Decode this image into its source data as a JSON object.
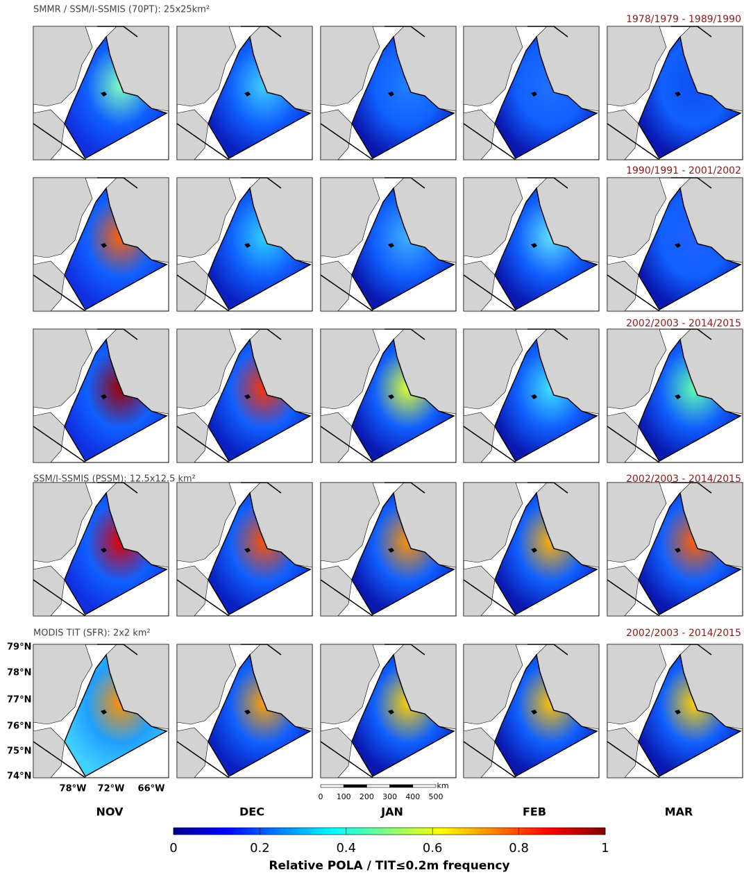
{
  "rows": [
    {
      "label": "SMMR / SSM/I-SSMIS (70PT): 25x25km²",
      "period": "1978/1979 - 1989/1990"
    },
    {
      "period": "1990/1991 - 2001/2002"
    },
    {
      "period": "2002/2003 - 2014/2015"
    },
    {
      "label": "SSM/I-SSMIS (PSSM): 12.5x12.5 km²",
      "period": "2002/2003 - 2014/2015"
    },
    {
      "label": "MODIS TIT (SFR): 2x2 km²",
      "period": "2002/2003 - 2014/2015"
    }
  ],
  "months": [
    "NOV",
    "DEC",
    "JAN",
    "FEB",
    "MAR"
  ],
  "latitude_labels": [
    "79°N",
    "78°N",
    "77°N",
    "76°N",
    "75°N",
    "74°N"
  ],
  "longitude_labels": [
    "78°W",
    "72°W",
    "66°W"
  ],
  "scale_bar": {
    "ticks": [
      "0",
      "100",
      "200",
      "300",
      "400",
      "500"
    ],
    "unit": "km"
  },
  "colorbar": {
    "label": "Relative POLA / TIT≤0.2m frequency",
    "lim": [
      0,
      1
    ],
    "ticks": [
      0,
      0.2,
      0.4,
      0.6,
      0.8,
      1
    ]
  }
}
